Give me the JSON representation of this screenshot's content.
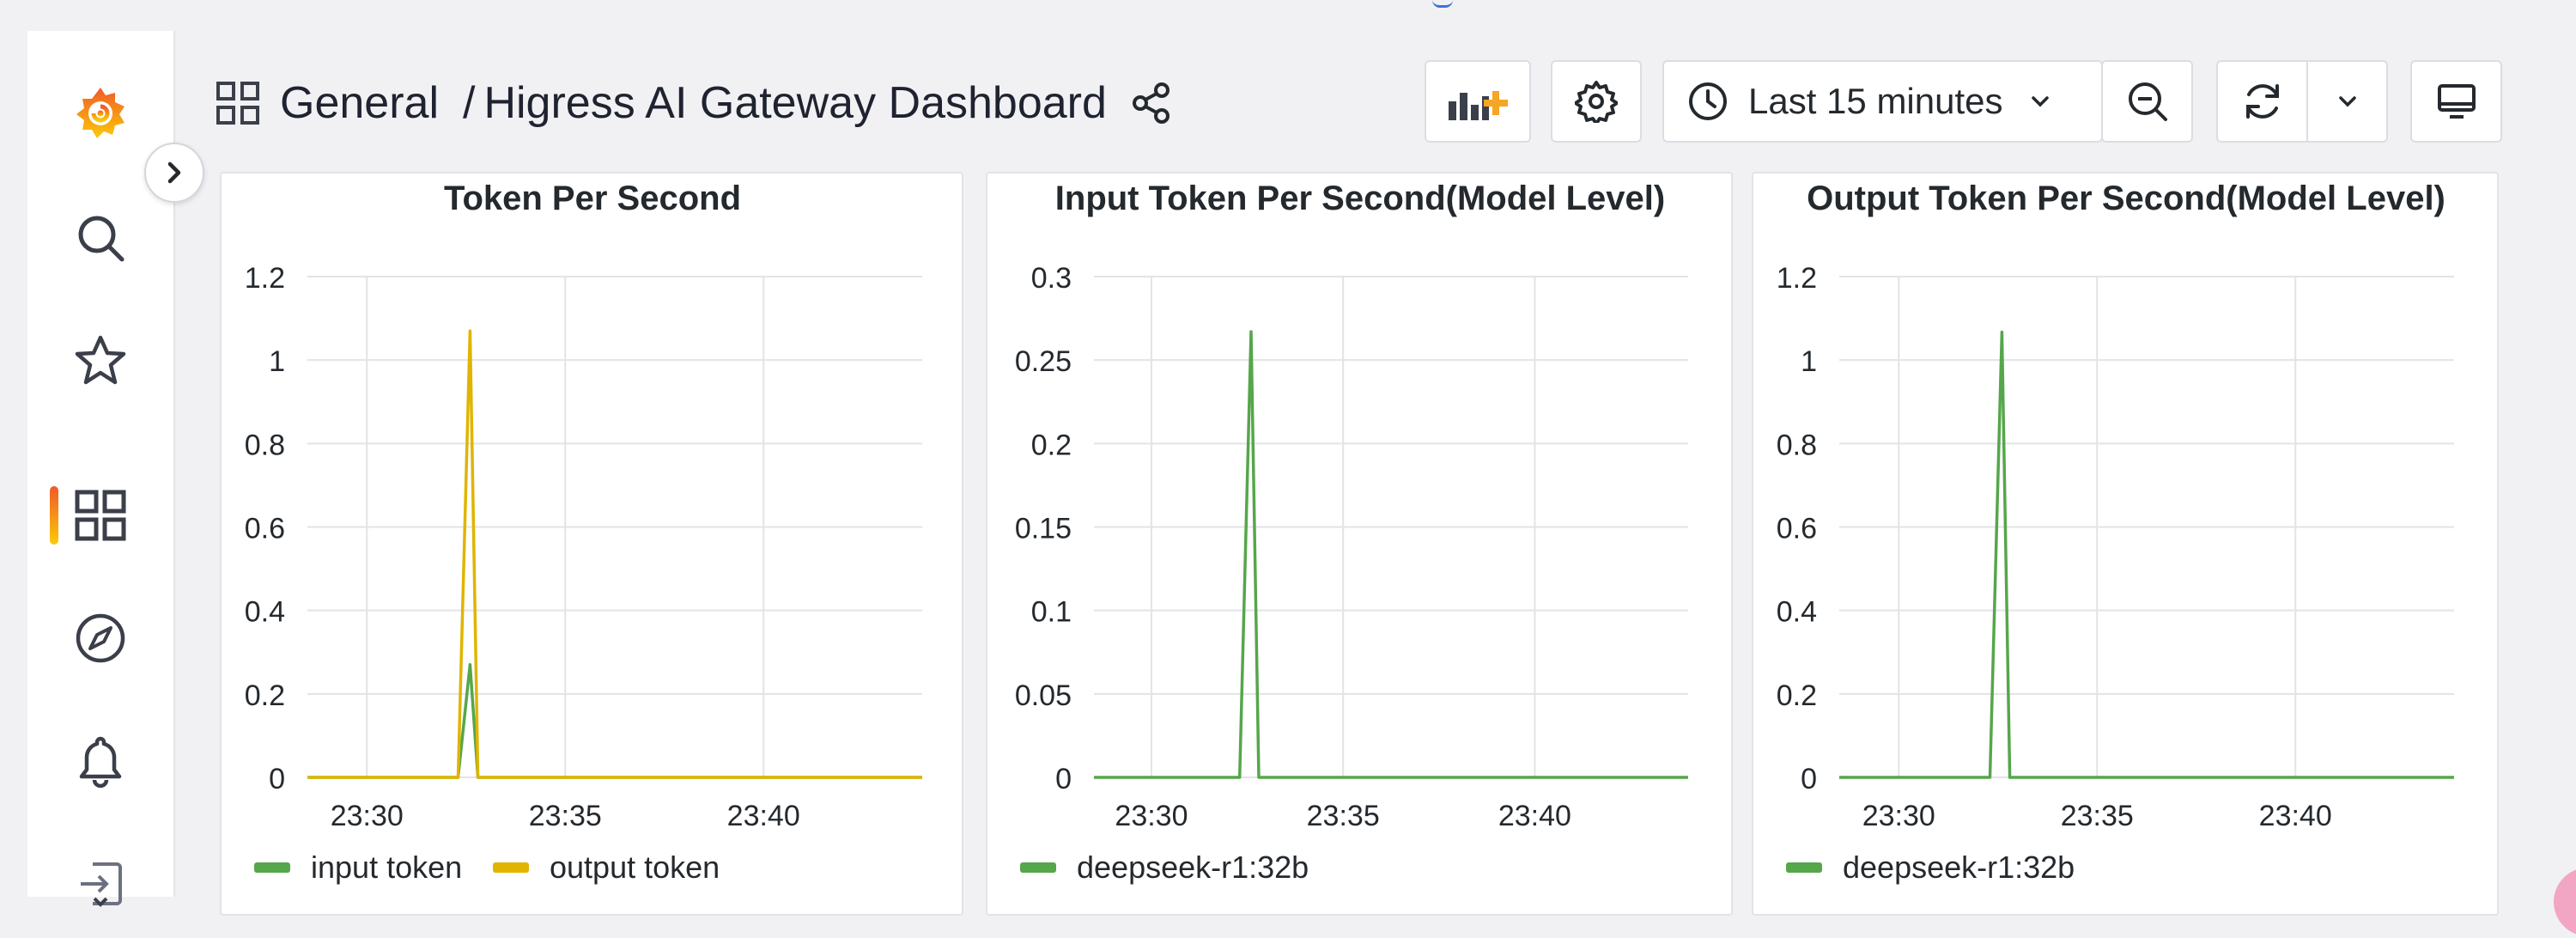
{
  "header": {
    "breadcrumb_parent": "General",
    "breadcrumb_separator": "/",
    "dashboard_title": "Higress AI Gateway Dashboard",
    "time_range_label": "Last 15 minutes"
  },
  "icons": {
    "logo": "grafana-logo-icon",
    "search": "search-icon",
    "starred": "star-icon",
    "dashboards": "dashboards-grid-icon",
    "explore": "compass-icon",
    "alerting": "bell-icon",
    "signin": "sign-in-icon",
    "expand": "chevron-right-icon",
    "add_panel": "add-panel-icon",
    "settings": "gear-icon",
    "clock": "clock-icon",
    "zoom_out": "zoom-out-icon",
    "refresh": "refresh-icon",
    "refresh_interval": "chevron-down-icon",
    "tv_mode": "monitor-icon",
    "share": "share-icon"
  },
  "colors": {
    "accent_green": "#56a64b",
    "accent_yellow": "#e0b400",
    "grafana_orange": "#f05a28"
  },
  "chart_data": [
    {
      "type": "line",
      "title": "Token Per Second",
      "x_ticks": [
        "23:30",
        "23:35",
        "23:40"
      ],
      "ylim": [
        0,
        1.2
      ],
      "y_ticks": [
        "1.2",
        "1",
        "0.8",
        "0.6",
        "0.4",
        "0.2",
        "0"
      ],
      "grid": true,
      "legend_position": "bottom-left",
      "x": [
        "23:28.5",
        "23:32.3",
        "23:32.6",
        "23:32.8",
        "23:44"
      ],
      "series": [
        {
          "name": "input token",
          "color": "#56a64b",
          "values": [
            0,
            0,
            0.27,
            0,
            0
          ]
        },
        {
          "name": "output token",
          "color": "#e0b400",
          "values": [
            0,
            0,
            1.07,
            0,
            0
          ]
        }
      ]
    },
    {
      "type": "line",
      "title": "Input Token Per Second(Model Level)",
      "x_ticks": [
        "23:30",
        "23:35",
        "23:40"
      ],
      "ylim": [
        0,
        0.3
      ],
      "y_ticks": [
        "0.3",
        "0.25",
        "0.2",
        "0.15",
        "0.1",
        "0.05",
        "0"
      ],
      "grid": true,
      "legend_position": "bottom-left",
      "x": [
        "23:28.5",
        "23:32.3",
        "23:32.6",
        "23:32.8",
        "23:44"
      ],
      "series": [
        {
          "name": "deepseek-r1:32b",
          "color": "#56a64b",
          "values": [
            0,
            0,
            0.267,
            0,
            0
          ]
        }
      ]
    },
    {
      "type": "line",
      "title": "Output Token Per Second(Model Level)",
      "x_ticks": [
        "23:30",
        "23:35",
        "23:40"
      ],
      "ylim": [
        0,
        1.2
      ],
      "y_ticks": [
        "1.2",
        "1",
        "0.8",
        "0.6",
        "0.4",
        "0.2",
        "0"
      ],
      "grid": true,
      "legend_position": "bottom-left",
      "x": [
        "23:28.5",
        "23:32.3",
        "23:32.6",
        "23:32.8",
        "23:44"
      ],
      "series": [
        {
          "name": "deepseek-r1:32b",
          "color": "#56a64b",
          "values": [
            0,
            0,
            1.067,
            0,
            0
          ]
        }
      ]
    }
  ]
}
